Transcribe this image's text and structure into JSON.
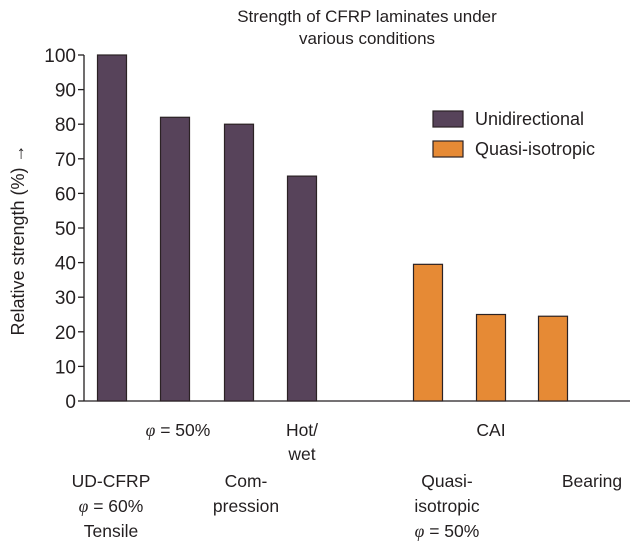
{
  "chart_data": {
    "type": "bar",
    "title": [
      "Strength of CFRP laminates under",
      "various conditions"
    ],
    "xlabel": "",
    "ylabel": "Relative strength (%) →",
    "ylim": [
      0,
      100
    ],
    "yticks": [
      0,
      10,
      20,
      30,
      40,
      50,
      60,
      70,
      80,
      90,
      100
    ],
    "grid": false,
    "legend_position": "top-right",
    "series": [
      {
        "name": "Unidirectional",
        "color": "#57435a"
      },
      {
        "name": "Quasi-isotropic",
        "color": "#e68a35"
      }
    ],
    "bars": [
      {
        "category": "UD-CFRP φ = 60% Tensile",
        "series": "Unidirectional",
        "value": 100
      },
      {
        "category": "φ = 50%",
        "series": "Unidirectional",
        "value": 82
      },
      {
        "category": "Compression",
        "series": "Unidirectional",
        "value": 80
      },
      {
        "category": "Hot/wet",
        "series": "Unidirectional",
        "value": 65
      },
      {
        "category": "Quasi-isotropic φ = 50%",
        "series": "Quasi-isotropic",
        "value": 39.5
      },
      {
        "category": "CAI",
        "series": "Quasi-isotropic",
        "value": 25
      },
      {
        "category": "Bearing",
        "series": "Quasi-isotropic",
        "value": 24.5
      }
    ],
    "category_labels_row1": [
      {
        "lines": [
          "φ = 50%"
        ],
        "bar": 1
      },
      {
        "lines": [
          "Hot/",
          "wet"
        ],
        "bar": 3
      },
      {
        "lines": [
          "CAI"
        ],
        "bar": 5
      }
    ],
    "category_labels_row2": [
      {
        "lines": [
          "UD-CFRP",
          "φ = 60%",
          "Tensile"
        ],
        "bar": 0
      },
      {
        "lines": [
          "Com-",
          "pression"
        ],
        "bar": 2
      },
      {
        "lines": [
          "Quasi-",
          "isotropic",
          "φ = 50%"
        ],
        "bar": 4
      },
      {
        "lines": [
          "Bearing"
        ],
        "bar": 6
      }
    ]
  }
}
